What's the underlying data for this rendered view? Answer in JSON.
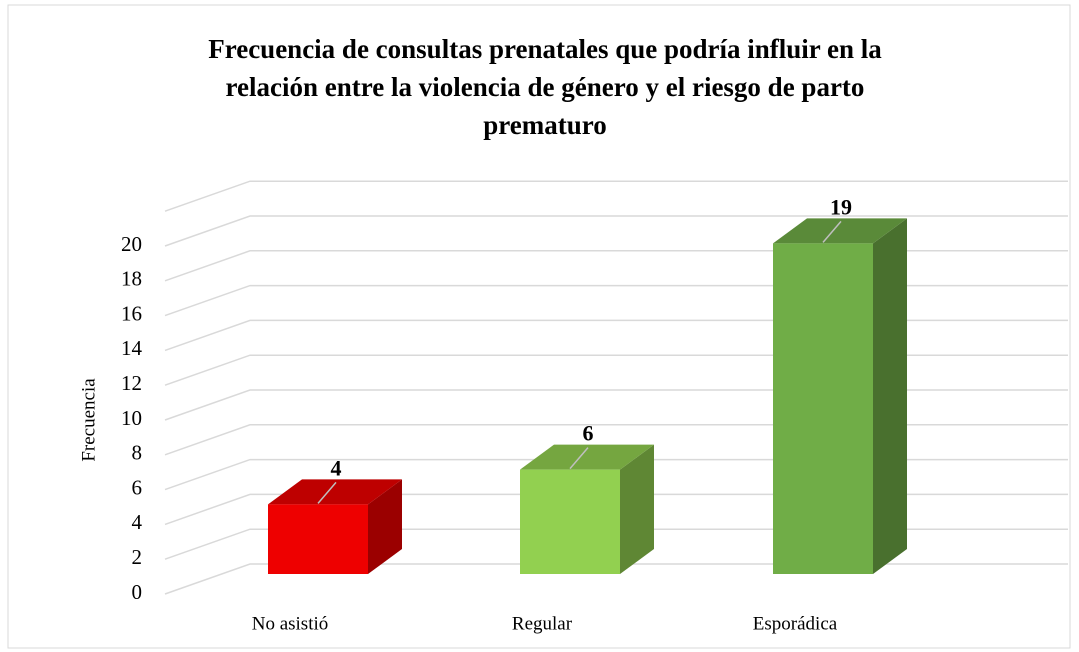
{
  "chart_data": {
    "type": "bar3d",
    "title": "Frecuencia de consultas prenatales que podría influir en la relación entre la violencia de género y el riesgo de parto prematuro",
    "title_lines": [
      "Frecuencia de consultas prenatales que podría influir en la",
      "relación entre la violencia de género y el riesgo de parto",
      "prematuro"
    ],
    "y_label": "Frecuencia",
    "categories": [
      "No asistió",
      "Regular",
      "Esporádica"
    ],
    "values": [
      4,
      6,
      19
    ],
    "colors": [
      "#ee0000",
      "#92d050",
      "#70ad47"
    ],
    "ylim": [
      0,
      22
    ],
    "yticks": [
      0,
      2,
      4,
      6,
      8,
      10,
      12,
      14,
      16,
      18,
      20
    ],
    "grid": true
  }
}
